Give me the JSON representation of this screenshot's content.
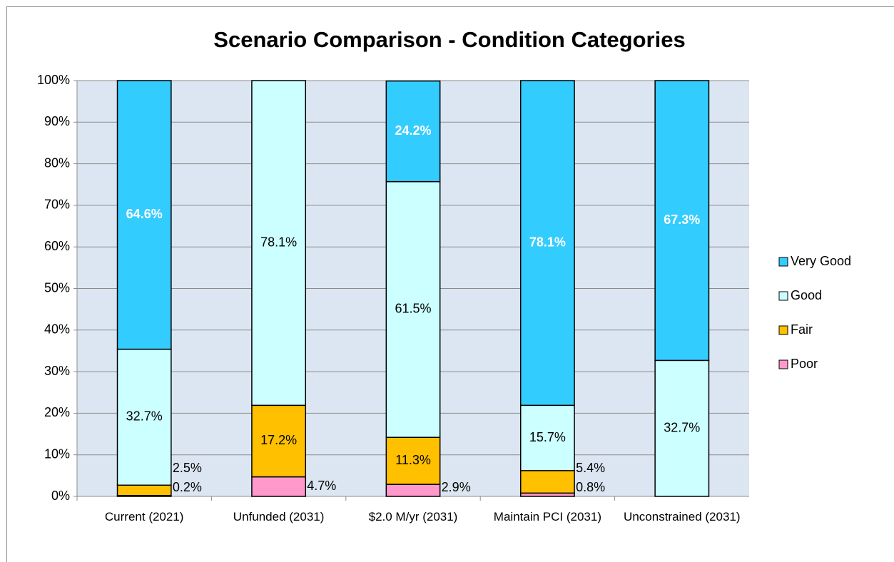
{
  "chart_data": {
    "type": "stacked_bar",
    "title": "Scenario Comparison - Condition Categories",
    "categories": [
      "Current (2021)",
      "Unfunded (2031)",
      "$2.0 M/yr (2031)",
      "Maintain PCI (2031)",
      "Unconstrained (2031)"
    ],
    "series": [
      {
        "name": "Poor",
        "color": "#ff99cc",
        "values": [
          0.2,
          4.7,
          2.9,
          0.8,
          0
        ],
        "value_labels": [
          "0.2%",
          "4.7%",
          "2.9%",
          "0.8%",
          null
        ]
      },
      {
        "name": "Fair",
        "color": "#ffc000",
        "values": [
          2.5,
          17.2,
          11.3,
          5.4,
          0
        ],
        "value_labels": [
          "2.5%",
          "17.2%",
          "11.3%",
          "5.4%",
          null
        ]
      },
      {
        "name": "Good",
        "color": "#ccffff",
        "values": [
          32.7,
          78.1,
          61.5,
          15.7,
          32.7
        ],
        "value_labels": [
          "32.7%",
          "78.1%",
          "61.5%",
          "15.7%",
          "32.7%"
        ]
      },
      {
        "name": "Very Good",
        "color": "#33ccff",
        "values": [
          64.6,
          0,
          24.2,
          78.1,
          67.3
        ],
        "value_labels": [
          "64.6%",
          null,
          "24.2%",
          "78.1%",
          "67.3%"
        ]
      }
    ],
    "ylim": [
      0,
      100
    ],
    "yticks": [
      {
        "value": 0,
        "label": "0%"
      },
      {
        "value": 10,
        "label": "10%"
      },
      {
        "value": 20,
        "label": "20%"
      },
      {
        "value": 30,
        "label": "30%"
      },
      {
        "value": 40,
        "label": "40%"
      },
      {
        "value": 50,
        "label": "50%"
      },
      {
        "value": 60,
        "label": "60%"
      },
      {
        "value": 70,
        "label": "70%"
      },
      {
        "value": 80,
        "label": "80%"
      },
      {
        "value": 90,
        "label": "90%"
      },
      {
        "value": 100,
        "label": "100%"
      }
    ],
    "grid": true,
    "legend": "right"
  }
}
